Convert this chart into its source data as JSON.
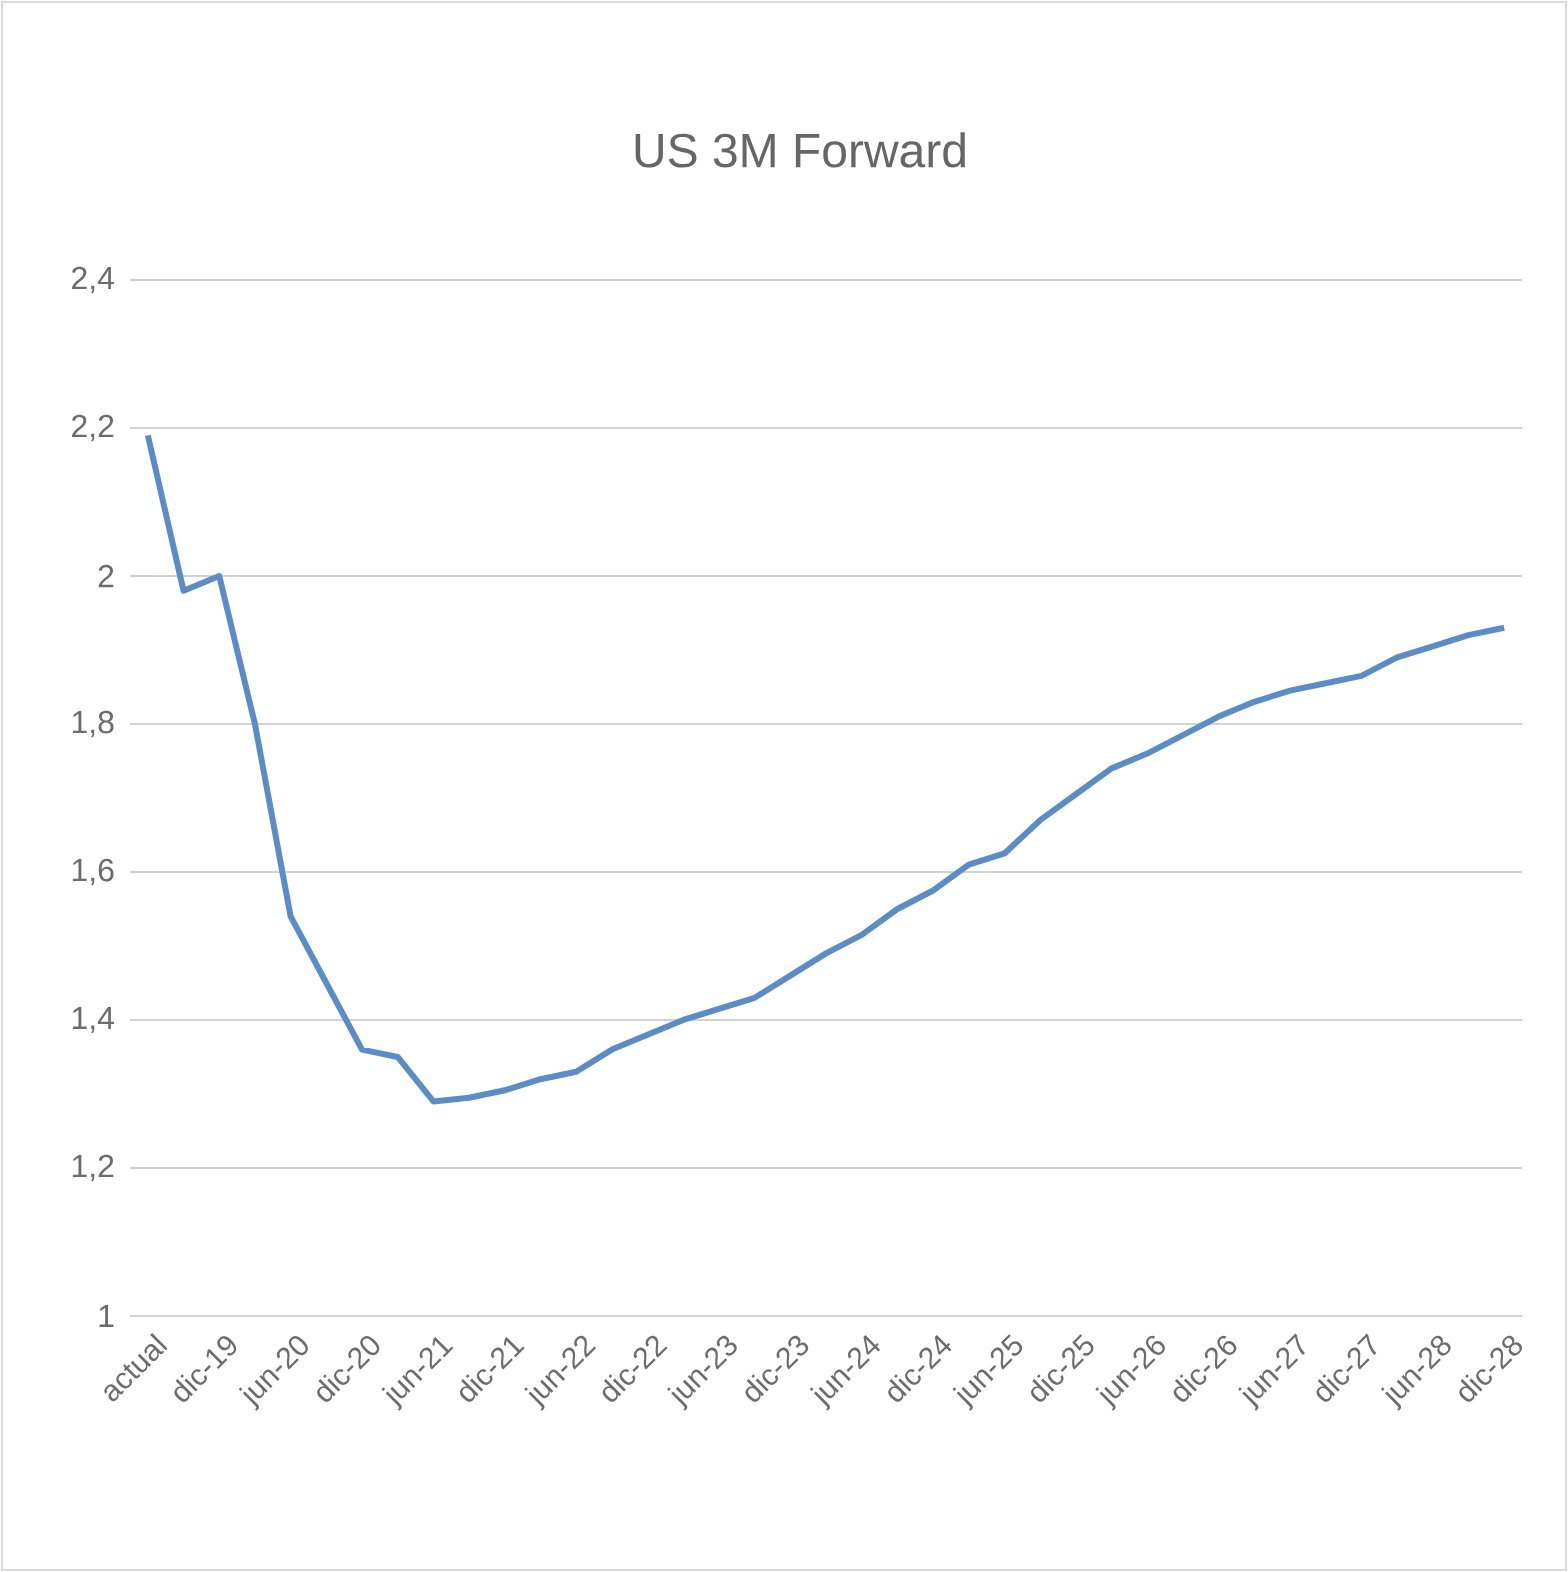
{
  "chart_data": {
    "type": "line",
    "title": "US 3M Forward",
    "categories": [
      "actual",
      null,
      "dic-19",
      null,
      "jun-20",
      null,
      "dic-20",
      null,
      "jun-21",
      null,
      "dic-21",
      null,
      "jun-22",
      null,
      "dic-22",
      null,
      "jun-23",
      null,
      "dic-23",
      null,
      "jun-24",
      null,
      "dic-24",
      null,
      "jun-25",
      null,
      "dic-25",
      null,
      "jun-26",
      null,
      "dic-26",
      null,
      "jun-27",
      null,
      "dic-27",
      null,
      "jun-28",
      null,
      "dic-28"
    ],
    "series": [
      {
        "color": "#5b8cc6",
        "values": [
          2.19,
          1.98,
          2.0,
          1.8,
          1.54,
          1.45,
          1.36,
          1.35,
          1.29,
          1.295,
          1.305,
          1.32,
          1.33,
          1.36,
          1.38,
          1.4,
          1.415,
          1.43,
          1.46,
          1.49,
          1.515,
          1.55,
          1.575,
          1.61,
          1.625,
          1.67,
          1.705,
          1.74,
          1.76,
          1.785,
          1.81,
          1.83,
          1.845,
          1.855,
          1.865,
          1.89,
          1.905,
          1.92,
          1.93
        ]
      }
    ],
    "ylim": [
      1,
      2.4
    ],
    "yticks": [
      1,
      {
        "value": 1.2,
        "label": "1,2"
      },
      {
        "value": 1.4,
        "label": "1,4"
      },
      {
        "value": 1.6,
        "label": "1,6"
      },
      {
        "value": 1.8,
        "label": "1,8"
      },
      2,
      {
        "value": 2.2,
        "label": "2,2"
      },
      {
        "value": 2.4,
        "label": "2,4"
      }
    ],
    "grid": "y"
  }
}
